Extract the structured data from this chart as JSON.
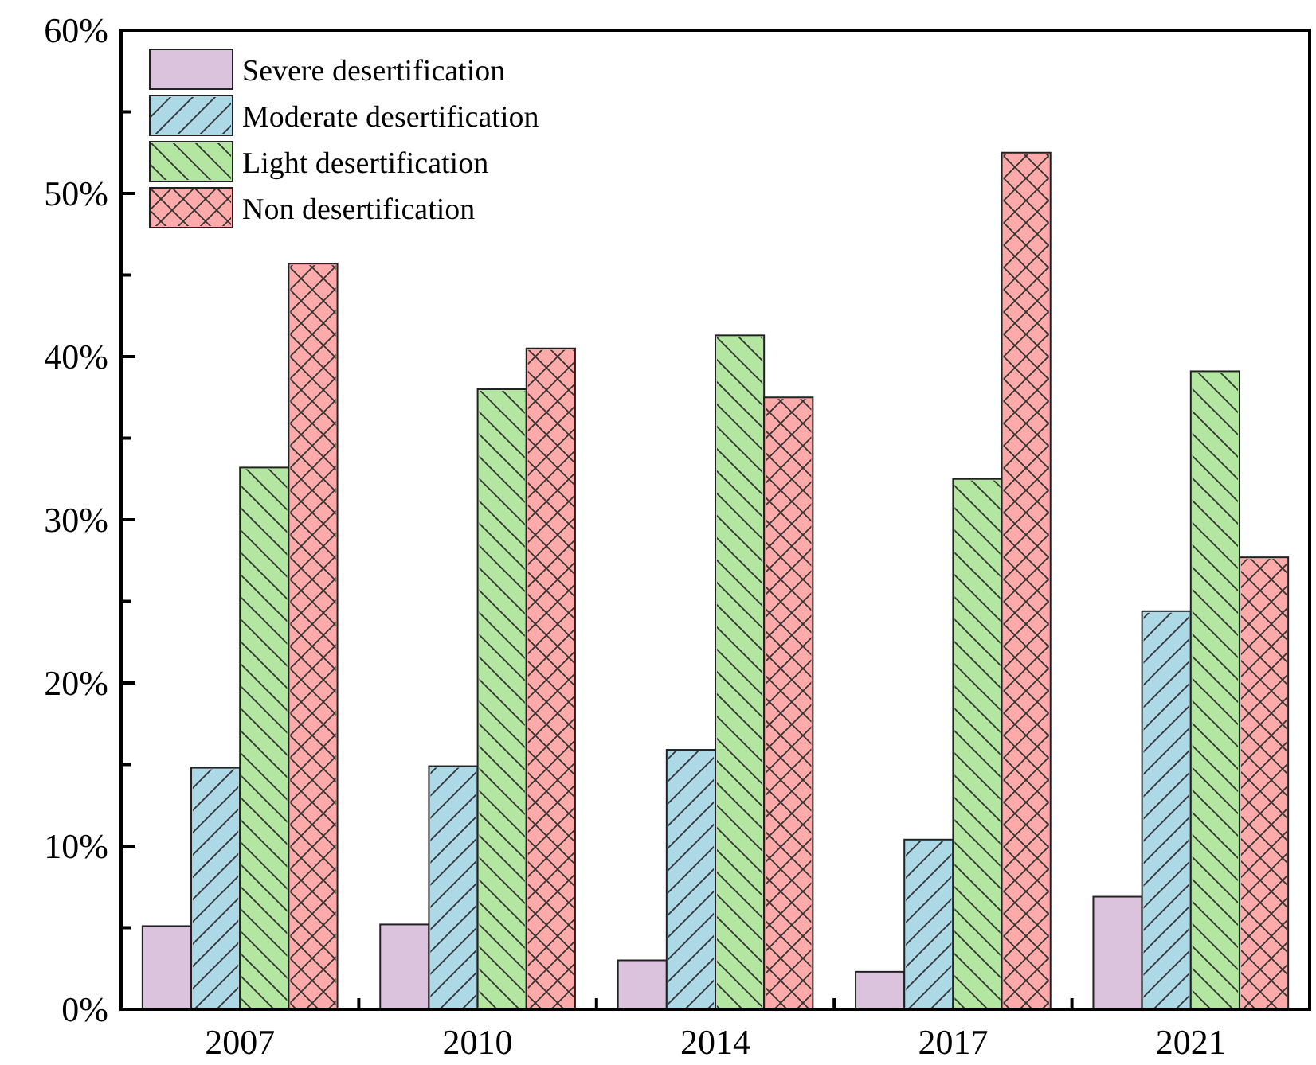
{
  "chart_data": {
    "type": "bar",
    "categories": [
      "2007",
      "2010",
      "2014",
      "2017",
      "2021"
    ],
    "series": [
      {
        "name": "Severe desertification",
        "color": "#dbc3de",
        "values": [
          5.1,
          5.2,
          3.0,
          2.3,
          6.9
        ]
      },
      {
        "name": "Moderate desertification",
        "color": "#add8e6",
        "values": [
          14.8,
          14.9,
          15.9,
          10.4,
          24.4
        ]
      },
      {
        "name": "Light desertification",
        "color": "#b3e6a1",
        "values": [
          33.2,
          38.0,
          41.3,
          32.5,
          39.1
        ]
      },
      {
        "name": "Non desertification",
        "color": "#ffaaaa",
        "values": [
          45.7,
          40.5,
          37.5,
          52.5,
          27.7
        ]
      }
    ],
    "ylim": [
      0,
      60
    ],
    "yticks": [
      {
        "value": 0,
        "label": "0%"
      },
      {
        "value": 5,
        "label": null
      },
      {
        "value": 10,
        "label": "10%"
      },
      {
        "value": 15,
        "label": null
      },
      {
        "value": 20,
        "label": "20%"
      },
      {
        "value": 25,
        "label": null
      },
      {
        "value": 30,
        "label": "30%"
      },
      {
        "value": 35,
        "label": null
      },
      {
        "value": 40,
        "label": "40%"
      },
      {
        "value": 45,
        "label": null
      },
      {
        "value": 50,
        "label": "50%"
      },
      {
        "value": 55,
        "label": null
      },
      {
        "value": 60,
        "label": "60%"
      }
    ],
    "legend": "top left",
    "grid": false
  }
}
